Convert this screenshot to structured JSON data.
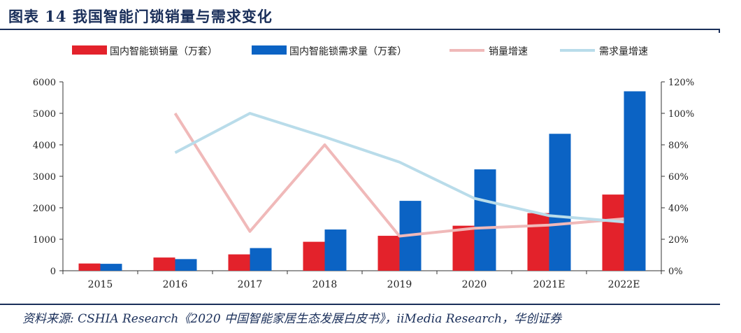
{
  "page": {
    "title": "图表 14   我国智能门锁销量与需求变化",
    "source": "资料来源: CSHIA Research《2020 中国智能家居生态发展白皮书》，iiMedia Research，华创证券"
  },
  "chart_data": {
    "type": "bar",
    "categories": [
      "2015",
      "2016",
      "2017",
      "2018",
      "2019",
      "2020",
      "2021E",
      "2022E"
    ],
    "series": [
      {
        "name": "国内智能锁销量（万套）",
        "kind": "bar",
        "axis": "left",
        "color": "#e3222b",
        "values": [
          230,
          420,
          520,
          920,
          1110,
          1430,
          1830,
          2420
        ]
      },
      {
        "name": "国内智能锁需求量（万套）",
        "kind": "bar",
        "axis": "left",
        "color": "#0b63c4",
        "values": [
          220,
          370,
          720,
          1310,
          2220,
          3220,
          4350,
          5700
        ]
      },
      {
        "name": "销量增速",
        "kind": "line",
        "axis": "right",
        "color": "#f0b9b9",
        "values": [
          null,
          100,
          25,
          80,
          22,
          27,
          29,
          33
        ]
      },
      {
        "name": "需求量增速",
        "kind": "line",
        "axis": "right",
        "color": "#b9dcea",
        "values": [
          null,
          75,
          100,
          85,
          69,
          46,
          35,
          31
        ]
      }
    ],
    "y_left": {
      "min": 0,
      "max": 6000,
      "ticks": [
        0,
        1000,
        2000,
        3000,
        4000,
        5000,
        6000
      ]
    },
    "y_right": {
      "min": 0,
      "max": 120,
      "ticks": [
        "0%",
        "20%",
        "40%",
        "60%",
        "80%",
        "100%",
        "120%"
      ]
    },
    "legend_position": "top",
    "grid": false
  }
}
